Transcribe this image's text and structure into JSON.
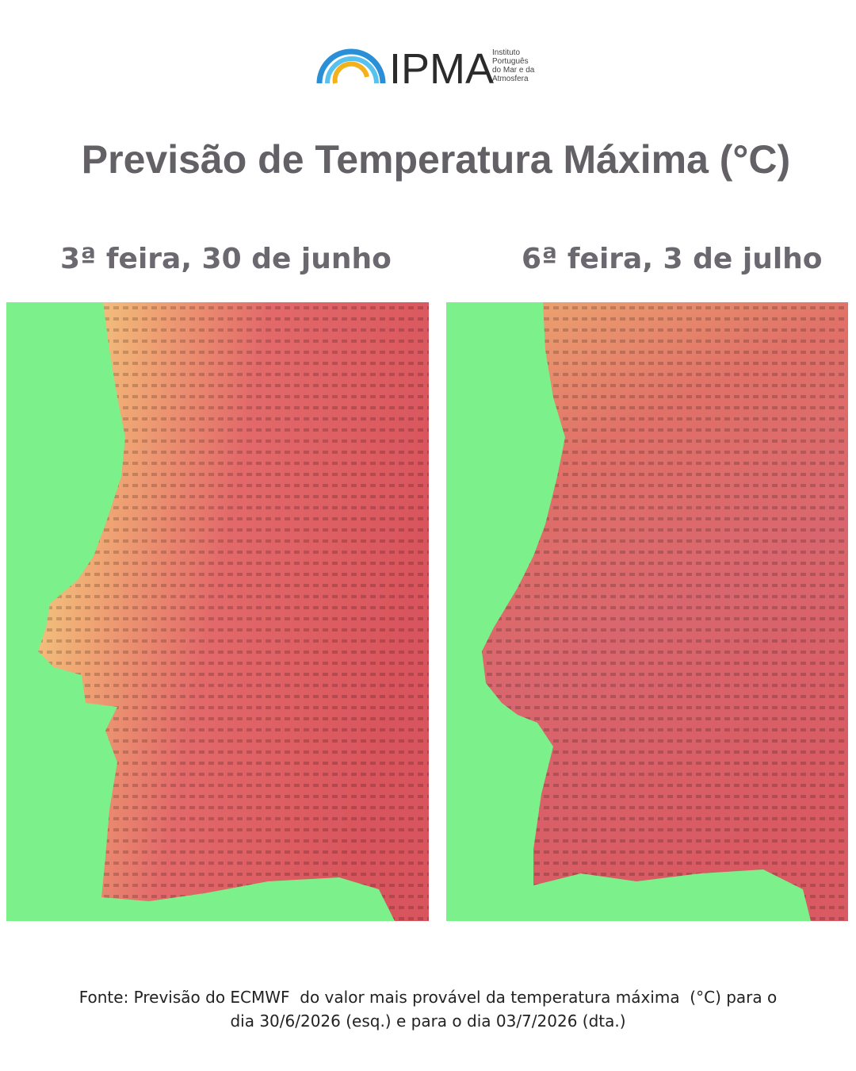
{
  "header": {
    "logo_text": "IPMA",
    "institute": [
      "Instituto",
      "Português",
      "do Mar e da",
      "Atmosfera"
    ]
  },
  "title": "Previsão de Temperatura Máxima (°C)",
  "panels": [
    {
      "label": "3ª feira, 30 de junho"
    },
    {
      "label": "6ª feira, 3 de julho"
    }
  ],
  "footer": [
    "Fonte: Previsão do ECMWF  do valor mais provável da temperatura máxima  (°C) para o",
    "dia 30/6/2026 (esq.) e para o dia 03/7/2026 (dta.)"
  ]
}
